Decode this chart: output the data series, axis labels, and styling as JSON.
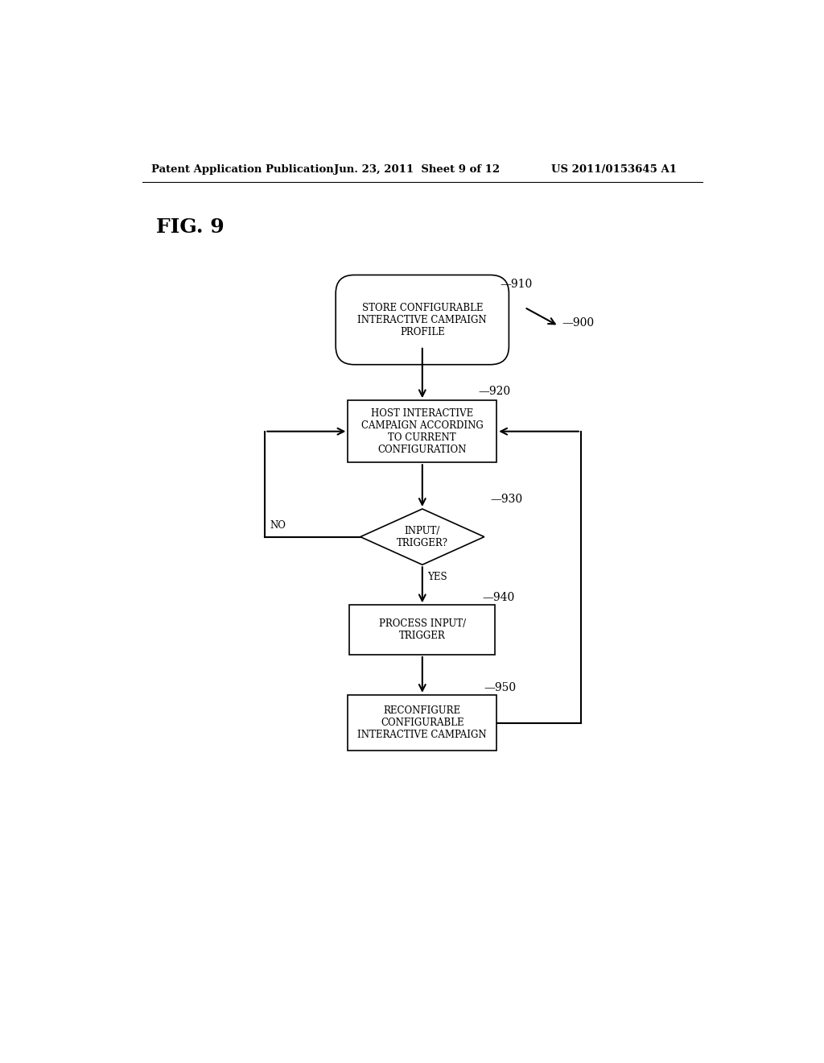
{
  "bg_color": "#ffffff",
  "header_left": "Patent Application Publication",
  "header_mid": "Jun. 23, 2011  Sheet 9 of 12",
  "header_right": "US 2011/0153645 A1",
  "fig_label": "FIG. 9",
  "node_910_label": "STORE CONFIGURABLE\nINTERACTIVE CAMPAIGN\nPROFILE",
  "node_920_label": "HOST INTERACTIVE\nCAMPAIGN ACCORDING\nTO CURRENT\nCONFIGURATION",
  "node_930_label": "INPUT/\nTRIGGER?",
  "node_940_label": "PROCESS INPUT/\nTRIGGER",
  "node_950_label": "RECONFIGURE\nCONFIGURABLE\nINTERACTIVE CAMPAIGN",
  "text_fontsize": 8.5,
  "label_fontsize": 10,
  "header_fontsize": 9.5,
  "figlabel_fontsize": 18
}
